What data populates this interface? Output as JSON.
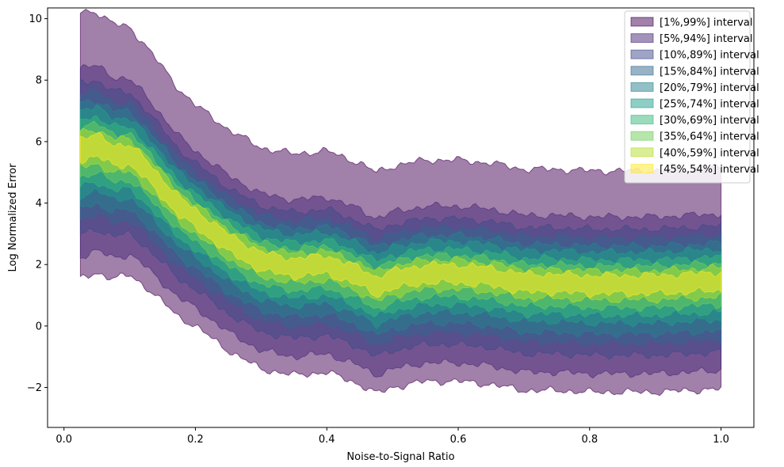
{
  "chart_data": {
    "type": "area",
    "title": "",
    "xlabel": "Noise-to-Signal Ratio",
    "ylabel": "Log Normalized Error",
    "xlim": [
      -0.025,
      1.05
    ],
    "ylim": [
      -3.3,
      10.35
    ],
    "x_ticks": [
      0.0,
      0.2,
      0.4,
      0.6,
      0.8,
      1.0
    ],
    "x_tick_labels": [
      "0.0",
      "0.2",
      "0.4",
      "0.6",
      "0.8",
      "1.0"
    ],
    "y_ticks": [
      -2,
      0,
      2,
      4,
      6,
      8,
      10
    ],
    "y_tick_labels": [
      "−2",
      "0",
      "2",
      "4",
      "6",
      "8",
      "10"
    ],
    "grid": false,
    "legend_position": "top-right",
    "x": [
      0.025,
      0.05,
      0.075,
      0.1,
      0.125,
      0.15,
      0.175,
      0.2,
      0.25,
      0.3,
      0.35,
      0.4,
      0.45,
      0.475,
      0.5,
      0.55,
      0.6,
      0.65,
      0.7,
      0.75,
      0.8,
      0.85,
      0.9,
      0.95,
      1.0
    ],
    "median": [
      6.0,
      6.1,
      5.8,
      5.8,
      5.3,
      4.7,
      4.1,
      3.7,
      2.9,
      2.3,
      2.1,
      2.2,
      1.8,
      1.5,
      1.7,
      1.9,
      1.9,
      1.8,
      1.6,
      1.6,
      1.55,
      1.55,
      1.55,
      1.6,
      1.65
    ],
    "lower_offsets": [
      -3.7,
      -3.1,
      -2.5,
      -2.1,
      -1.8,
      -1.45,
      -1.2,
      -0.95,
      -0.7,
      -0.5,
      -0.3
    ],
    "upper_offsets": [
      3.5,
      2.0,
      1.6,
      1.3,
      1.05,
      0.85,
      0.6,
      0.4,
      0.25,
      0.1,
      0.0
    ],
    "series": [
      {
        "name": "[1%,99%] interval",
        "color": "#440154",
        "lower_offset": -3.7,
        "upper_offset": 3.5
      },
      {
        "name": "[5%,94%] interval",
        "color": "#482878",
        "lower_offset": -3.1,
        "upper_offset": 2.0
      },
      {
        "name": "[10%,89%] interval",
        "color": "#3e4989",
        "lower_offset": -2.5,
        "upper_offset": 1.6
      },
      {
        "name": "[15%,84%] interval",
        "color": "#31688e",
        "lower_offset": -2.1,
        "upper_offset": 1.3
      },
      {
        "name": "[20%,79%] interval",
        "color": "#26828e",
        "lower_offset": -1.8,
        "upper_offset": 1.05
      },
      {
        "name": "[25%,74%] interval",
        "color": "#1f9e89",
        "lower_offset": -1.45,
        "upper_offset": 0.85
      },
      {
        "name": "[30%,69%] interval",
        "color": "#35b779",
        "lower_offset": -1.2,
        "upper_offset": 0.6
      },
      {
        "name": "[35%,64%] interval",
        "color": "#6ece58",
        "lower_offset": -0.95,
        "upper_offset": 0.4
      },
      {
        "name": "[40%,59%] interval",
        "color": "#b5de2b",
        "lower_offset": -0.7,
        "upper_offset": 0.25
      },
      {
        "name": "[45%,54%] interval",
        "color": "#fde725",
        "lower_offset": -0.5,
        "upper_offset": 0.1
      }
    ]
  }
}
